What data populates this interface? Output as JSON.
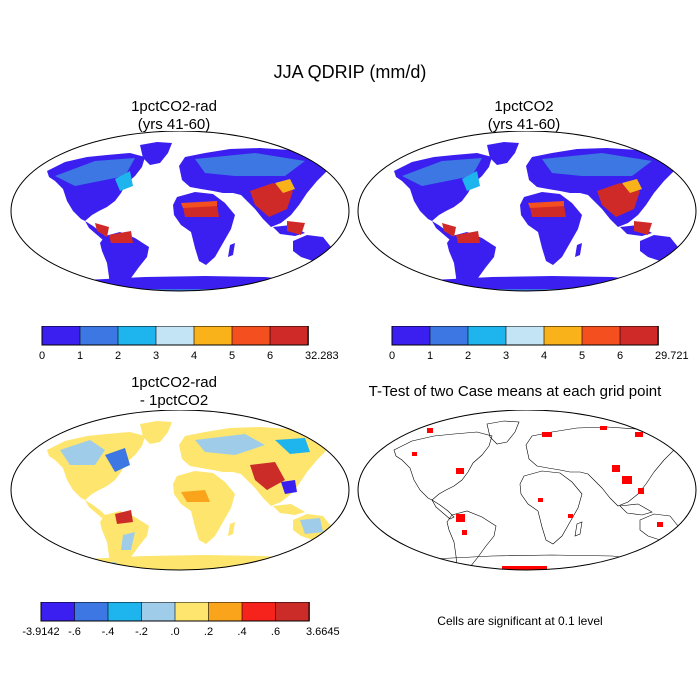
{
  "title": "JJA QDRIP (mm/d)",
  "palette_main": [
    "#3b1ff0",
    "#3c77e3",
    "#1eb4ee",
    "#c3e4f4",
    "#f9b21a",
    "#f4501f",
    "#d02a28"
  ],
  "palette_diff": [
    "#3b1ff0",
    "#3c77e3",
    "#1eb4ee",
    "#9fcde9",
    "#fde56e",
    "#f9a41a",
    "#f6221c",
    "#cc2c28"
  ],
  "signif_color": "#ff0000",
  "panels": {
    "p1": {
      "title_line1": "1pctCO2-rad",
      "title_line2": "(yrs 41-60)",
      "colorbar_labels": [
        "0",
        "1",
        "2",
        "3",
        "4",
        "5",
        "6",
        "32.283"
      ]
    },
    "p2": {
      "title_line1": "1pctCO2",
      "title_line2": "(yrs 41-60)",
      "colorbar_labels": [
        "0",
        "1",
        "2",
        "3",
        "4",
        "5",
        "6",
        "29.721"
      ]
    },
    "p3": {
      "title_line1": "1pctCO2-rad",
      "title_line2": "- 1pctCO2",
      "colorbar_labels": [
        "-3.9142",
        "-.6",
        "-.4",
        "-.2",
        ".0",
        ".2",
        ".4",
        ".6",
        "3.6645"
      ]
    },
    "p4": {
      "title": "T-Test of two Case means at each grid point",
      "note": "Cells are significant at 0.1 level"
    }
  }
}
